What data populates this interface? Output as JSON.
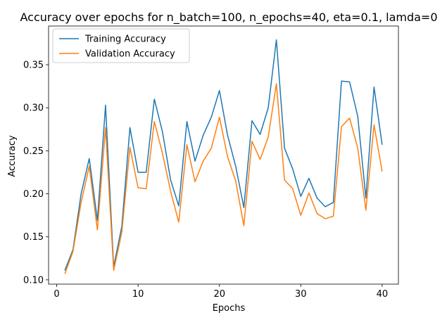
{
  "chart_data": {
    "type": "line",
    "title": "Accuracy over epochs for n_batch=100, n_epochs=40, eta=0.1, lamda=0",
    "xlabel": "Epochs",
    "ylabel": "Accuracy",
    "xlim": [
      -1,
      42
    ],
    "ylim": [
      0.095,
      0.395
    ],
    "x_ticks": [
      0,
      10,
      20,
      30,
      40
    ],
    "y_ticks": [
      0.1,
      0.15,
      0.2,
      0.25,
      0.3,
      0.35
    ],
    "y_tick_labels": [
      "0.10",
      "0.15",
      "0.20",
      "0.25",
      "0.30",
      "0.35"
    ],
    "grid": false,
    "legend_position": "top-left",
    "x": [
      1,
      2,
      3,
      4,
      5,
      6,
      7,
      8,
      9,
      10,
      11,
      12,
      13,
      14,
      15,
      16,
      17,
      18,
      19,
      20,
      21,
      22,
      23,
      24,
      25,
      26,
      27,
      28,
      29,
      30,
      31,
      32,
      33,
      34,
      35,
      36,
      37,
      38,
      39,
      40
    ],
    "series": [
      {
        "name": "Training Accuracy",
        "color": "#1f77b4",
        "values": [
          0.111,
          0.135,
          0.2,
          0.241,
          0.169,
          0.303,
          0.115,
          0.162,
          0.277,
          0.225,
          0.225,
          0.31,
          0.272,
          0.216,
          0.186,
          0.284,
          0.238,
          0.268,
          0.289,
          0.32,
          0.268,
          0.232,
          0.184,
          0.285,
          0.269,
          0.3,
          0.379,
          0.253,
          0.229,
          0.197,
          0.218,
          0.195,
          0.185,
          0.19,
          0.331,
          0.33,
          0.29,
          0.195,
          0.324,
          0.257
        ]
      },
      {
        "name": "Validation Accuracy",
        "color": "#ff7f0e",
        "values": [
          0.107,
          0.133,
          0.19,
          0.232,
          0.158,
          0.277,
          0.111,
          0.155,
          0.254,
          0.207,
          0.206,
          0.284,
          0.247,
          0.203,
          0.167,
          0.257,
          0.214,
          0.238,
          0.253,
          0.289,
          0.243,
          0.215,
          0.163,
          0.261,
          0.24,
          0.266,
          0.328,
          0.216,
          0.206,
          0.175,
          0.201,
          0.177,
          0.171,
          0.174,
          0.278,
          0.288,
          0.253,
          0.181,
          0.28,
          0.226
        ]
      }
    ]
  }
}
